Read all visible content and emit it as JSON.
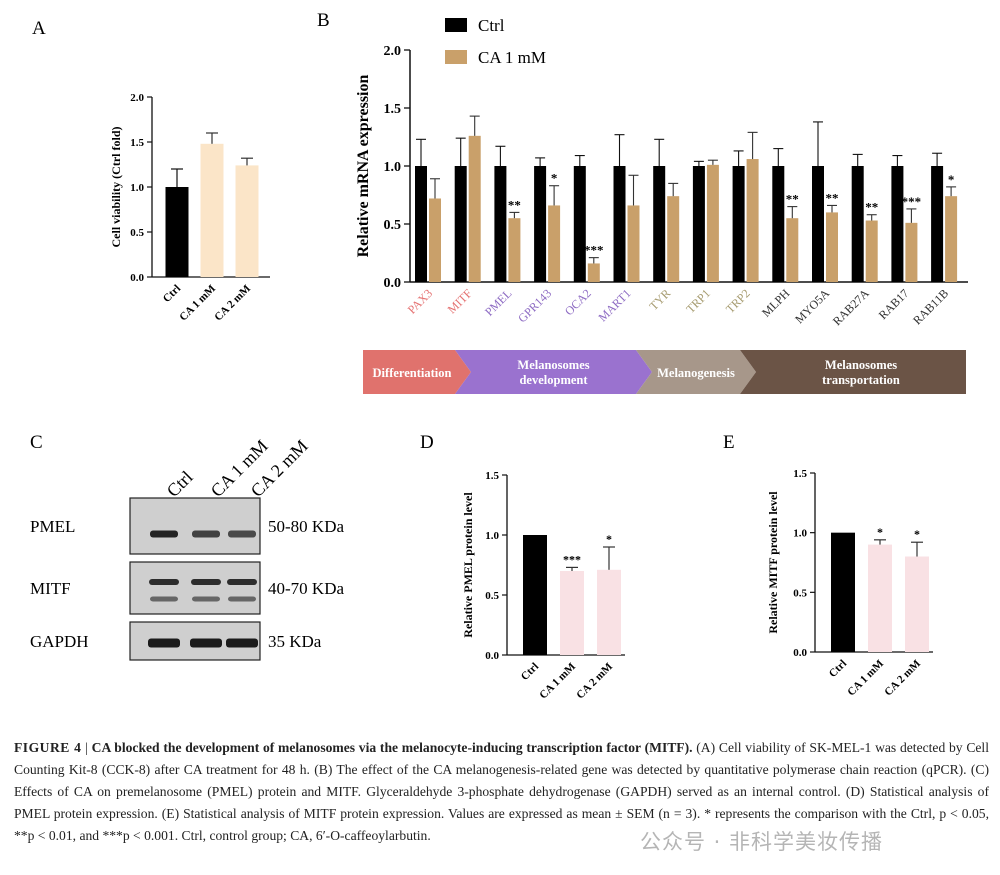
{
  "panels": {
    "a": {
      "label": "A",
      "ylabel": "Cell viability (Ctrl fold)"
    },
    "b": {
      "label": "B"
    },
    "c": {
      "label": "C"
    },
    "d": {
      "label": "D"
    },
    "e": {
      "label": "E"
    }
  },
  "chart_data": [
    {
      "id": "A",
      "type": "bar",
      "title": "",
      "xlabel": "",
      "ylabel": "Cell viability (Ctrl fold)",
      "ylim": [
        0,
        2.0
      ],
      "yticks": [
        "0.0",
        "0.5",
        "1.0",
        "1.5",
        "2.0"
      ],
      "categories": [
        "Ctrl",
        "CA 1 mM",
        "CA 2 mM"
      ],
      "values": [
        1.0,
        1.48,
        1.24
      ],
      "errors": [
        0.2,
        0.12,
        0.08
      ],
      "colors": [
        "#000000",
        "#fbe5c8",
        "#fbe5c8"
      ],
      "significance": [
        "",
        "",
        ""
      ]
    },
    {
      "id": "B",
      "type": "bar",
      "title": "",
      "xlabel": "",
      "ylabel": "Relative mRNA expression",
      "ylim": [
        0,
        2.0
      ],
      "yticks": [
        "0.0",
        "0.5",
        "1.0",
        "1.5",
        "2.0"
      ],
      "categories": [
        "PAX3",
        "MITF",
        "PMEL",
        "GPR143",
        "OCA2",
        "MART1",
        "TYR",
        "TRP1",
        "TRP2",
        "MLPH",
        "MYO5A",
        "RAB27A",
        "RAB17",
        "RAB11B"
      ],
      "category_colors": [
        "#e57373",
        "#e57373",
        "#8f6dc4",
        "#8f6dc4",
        "#8f6dc4",
        "#8f6dc4",
        "#a89d72",
        "#a89d72",
        "#a89d72",
        "#333333",
        "#333333",
        "#333333",
        "#333333",
        "#333333"
      ],
      "series": [
        {
          "name": "Ctrl",
          "color": "#000000",
          "values": [
            1.0,
            1.0,
            1.0,
            1.0,
            1.0,
            1.0,
            1.0,
            1.0,
            1.0,
            1.0,
            1.0,
            1.0,
            1.0,
            1.0
          ],
          "errors": [
            0.23,
            0.24,
            0.17,
            0.07,
            0.09,
            0.27,
            0.23,
            0.04,
            0.13,
            0.15,
            0.38,
            0.1,
            0.09,
            0.11
          ]
        },
        {
          "name": "CA 1 mM",
          "color": "#c9a06a",
          "values": [
            0.72,
            1.26,
            0.55,
            0.66,
            0.16,
            0.66,
            0.74,
            1.01,
            1.06,
            0.55,
            0.6,
            0.53,
            0.51,
            0.74
          ],
          "errors": [
            0.17,
            0.17,
            0.05,
            0.17,
            0.05,
            0.26,
            0.11,
            0.04,
            0.23,
            0.1,
            0.06,
            0.05,
            0.12,
            0.08
          ]
        }
      ],
      "significance": [
        "",
        "",
        "**",
        "*",
        "***",
        "",
        "",
        "",
        "",
        "**",
        "**",
        "**",
        "***",
        "*"
      ]
    },
    {
      "id": "D",
      "type": "bar",
      "title": "",
      "xlabel": "",
      "ylabel": "Relative PMEL protein level",
      "ylim": [
        0,
        1.5
      ],
      "yticks": [
        "0.0",
        "0.5",
        "1.0",
        "1.5"
      ],
      "categories": [
        "Ctrl",
        "CA 1 mM",
        "CA 2 mM"
      ],
      "values": [
        1.0,
        0.7,
        0.71
      ],
      "errors": [
        0.0,
        0.03,
        0.19
      ],
      "colors": [
        "#000000",
        "#f9e1e4",
        "#f9e1e4"
      ],
      "significance": [
        "",
        "***",
        "*"
      ]
    },
    {
      "id": "E",
      "type": "bar",
      "title": "",
      "xlabel": "",
      "ylabel": "Relative MITF protein level",
      "ylim": [
        0,
        1.5
      ],
      "yticks": [
        "0.0",
        "0.5",
        "1.0",
        "1.5"
      ],
      "categories": [
        "Ctrl",
        "CA 1 mM",
        "CA 2 mM"
      ],
      "values": [
        1.0,
        0.9,
        0.8
      ],
      "errors": [
        0.0,
        0.04,
        0.12
      ],
      "colors": [
        "#000000",
        "#f9e1e4",
        "#f9e1e4"
      ],
      "significance": [
        "",
        "*",
        "*"
      ]
    }
  ],
  "stages": [
    {
      "label": "Differentiation",
      "color": "#e0726d"
    },
    {
      "label": "Melanosomes development",
      "color": "#9a72cf"
    },
    {
      "label": "Melanogenesis",
      "color": "#a7978a"
    },
    {
      "label": "Melanosomes transportation",
      "color": "#6b5446"
    }
  ],
  "western_blot": {
    "lanes": [
      "Ctrl",
      "CA 1 mM",
      "CA 2 mM"
    ],
    "rows": [
      {
        "protein": "PMEL",
        "size": "50-80 KDa"
      },
      {
        "protein": "MITF",
        "size": "40-70 KDa"
      },
      {
        "protein": "GAPDH",
        "size": "35 KDa"
      }
    ]
  },
  "caption": {
    "label": "FIGURE 4",
    "sep": "|",
    "title": "CA blocked the development of melanosomes via the melanocyte-inducing transcription factor (MITF).",
    "body": "(A) Cell viability of SK-MEL-1 was detected by Cell Counting Kit-8 (CCK-8) after CA treatment for 48 h. (B) The effect of the CA melanogenesis-related gene was detected by quantitative polymerase chain reaction (qPCR). (C) Effects of CA on premelanosome (PMEL) protein and MITF. Glyceraldehyde 3-phosphate dehydrogenase (GAPDH) served as an internal control. (D) Statistical analysis of PMEL protein expression. (E) Statistical analysis of MITF protein expression. Values are expressed as mean ± SEM (n = 3). * represents the comparison with the Ctrl, p < 0.05, **p < 0.01, and ***p < 0.001. Ctrl, control group; CA, 6′-O-caffeoylarbutin."
  },
  "watermark": "公众号 · 非科学美妆传播"
}
